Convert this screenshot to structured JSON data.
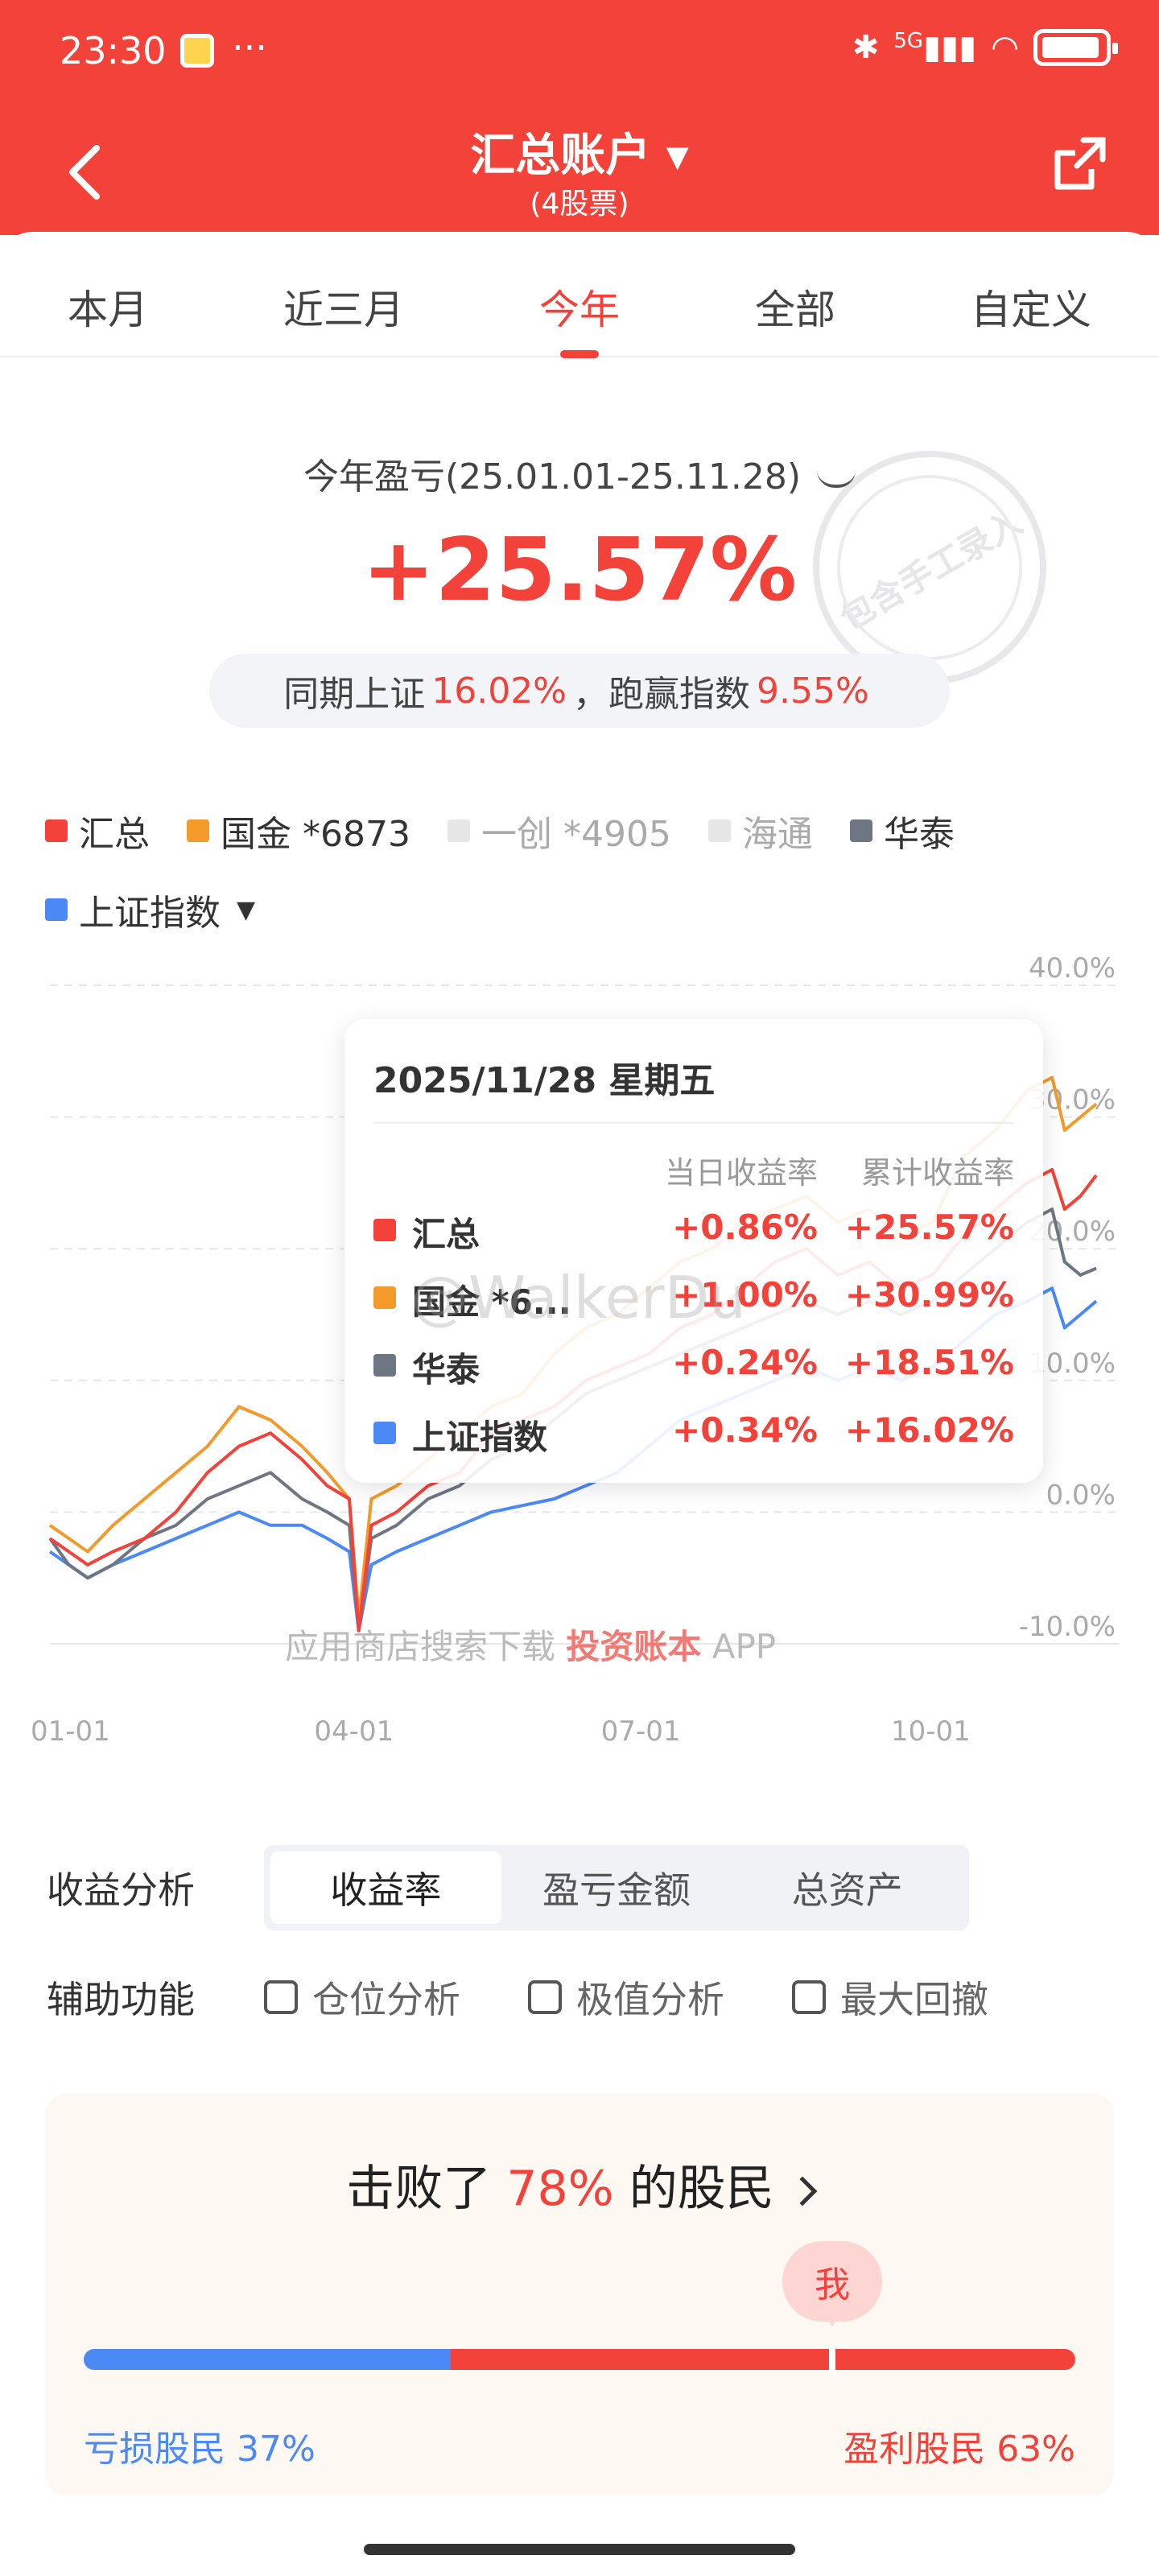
{
  "status_bar": {
    "time": "23:30",
    "dots": "···",
    "network": "5G"
  },
  "header": {
    "title": "汇总账户 ▾",
    "subtitle": "(4股票)"
  },
  "tabs": [
    {
      "label": "本月"
    },
    {
      "label": "近三月"
    },
    {
      "label": "今年",
      "active": true
    },
    {
      "label": "全部"
    },
    {
      "label": "自定义"
    }
  ],
  "summary": {
    "title": "今年盈亏(25.01.01-25.11.28)",
    "value": "+25.57%",
    "compare_prefix": "同期上证",
    "compare_index": "16.02%",
    "compare_mid": "，跑赢指数",
    "compare_diff": "9.55%",
    "stamp_text": "包含手工录入"
  },
  "legend": [
    {
      "label": "汇总",
      "color": "#f2423a"
    },
    {
      "label": "国金 *6873",
      "color": "#f39a2a"
    },
    {
      "label": "一创 *4905",
      "color": "#e6e6e6",
      "muted": true
    },
    {
      "label": "海通",
      "color": "#e6e6e6",
      "muted": true
    },
    {
      "label": "华泰",
      "color": "#6f7683"
    },
    {
      "label": "上证指数",
      "color": "#4b89f5",
      "dropdown": true
    }
  ],
  "tooltip": {
    "date": "2025/11/28 星期五",
    "col_daily": "当日收益率",
    "col_cum": "累计收益率",
    "rows": [
      {
        "name": "汇总",
        "daily": "+0.86%",
        "cum": "+25.57%",
        "color": "#f2423a"
      },
      {
        "name": "国金 *6...",
        "daily": "+1.00%",
        "cum": "+30.99%",
        "color": "#f39a2a"
      },
      {
        "name": "华泰",
        "daily": "+0.24%",
        "cum": "+18.51%",
        "color": "#6f7683"
      },
      {
        "name": "上证指数",
        "daily": "+0.34%",
        "cum": "+16.02%",
        "color": "#4b89f5"
      }
    ]
  },
  "watermark": "@WalkerDu",
  "app_watermark": {
    "prefix": "应用商店搜索下载 ",
    "app": "投资账本",
    "suffix": " APP"
  },
  "chart_data": {
    "type": "line",
    "x_ticks": [
      "01-01",
      "04-01",
      "07-01",
      "10-01"
    ],
    "y_ticks": [
      "40.0%",
      "30.0%",
      "20.0%",
      "10.0%",
      "0.0%",
      "-10.0%"
    ],
    "ylim": [
      -10,
      40
    ],
    "xlim_days": [
      0,
      332
    ],
    "grid": true,
    "series": [
      {
        "name": "汇总",
        "color": "#f2423a",
        "values": [
          [
            0,
            -2
          ],
          [
            6,
            -3
          ],
          [
            12,
            -4
          ],
          [
            20,
            -3
          ],
          [
            30,
            -2
          ],
          [
            40,
            0
          ],
          [
            50,
            3
          ],
          [
            60,
            5
          ],
          [
            70,
            6
          ],
          [
            80,
            4
          ],
          [
            88,
            2
          ],
          [
            95,
            1
          ],
          [
            98,
            -9
          ],
          [
            102,
            -1
          ],
          [
            110,
            0
          ],
          [
            120,
            2
          ],
          [
            130,
            3
          ],
          [
            140,
            6
          ],
          [
            150,
            7
          ],
          [
            160,
            8
          ],
          [
            170,
            10
          ],
          [
            180,
            11
          ],
          [
            190,
            12
          ],
          [
            200,
            14
          ],
          [
            210,
            15
          ],
          [
            220,
            17
          ],
          [
            230,
            19
          ],
          [
            240,
            20
          ],
          [
            250,
            18
          ],
          [
            260,
            19
          ],
          [
            270,
            17
          ],
          [
            280,
            18
          ],
          [
            290,
            21
          ],
          [
            300,
            23
          ],
          [
            310,
            25
          ],
          [
            318,
            26
          ],
          [
            322,
            23
          ],
          [
            327,
            24
          ],
          [
            332,
            25.57
          ]
        ]
      },
      {
        "name": "国金 *6873",
        "color": "#f39a2a",
        "values": [
          [
            0,
            -1
          ],
          [
            6,
            -2
          ],
          [
            12,
            -3
          ],
          [
            20,
            -1
          ],
          [
            30,
            1
          ],
          [
            40,
            3
          ],
          [
            50,
            5
          ],
          [
            60,
            8
          ],
          [
            70,
            7
          ],
          [
            80,
            5
          ],
          [
            88,
            3
          ],
          [
            95,
            1
          ],
          [
            98,
            -8
          ],
          [
            102,
            1
          ],
          [
            110,
            2
          ],
          [
            120,
            4
          ],
          [
            130,
            6
          ],
          [
            140,
            8
          ],
          [
            150,
            9
          ],
          [
            160,
            12
          ],
          [
            170,
            14
          ],
          [
            180,
            15
          ],
          [
            190,
            17
          ],
          [
            200,
            19
          ],
          [
            210,
            20
          ],
          [
            220,
            22
          ],
          [
            230,
            23
          ],
          [
            240,
            24
          ],
          [
            250,
            22
          ],
          [
            260,
            23
          ],
          [
            270,
            21
          ],
          [
            280,
            22
          ],
          [
            290,
            27
          ],
          [
            300,
            29
          ],
          [
            310,
            32
          ],
          [
            318,
            33
          ],
          [
            322,
            29
          ],
          [
            327,
            30
          ],
          [
            332,
            30.99
          ]
        ]
      },
      {
        "name": "华泰",
        "color": "#6f7683",
        "values": [
          [
            0,
            -2
          ],
          [
            6,
            -4
          ],
          [
            12,
            -5
          ],
          [
            20,
            -4
          ],
          [
            30,
            -2
          ],
          [
            40,
            -1
          ],
          [
            50,
            1
          ],
          [
            60,
            2
          ],
          [
            70,
            3
          ],
          [
            80,
            1
          ],
          [
            88,
            0
          ],
          [
            95,
            -1
          ],
          [
            98,
            -9
          ],
          [
            102,
            -2
          ],
          [
            110,
            -1
          ],
          [
            120,
            1
          ],
          [
            130,
            2
          ],
          [
            140,
            4
          ],
          [
            150,
            5
          ],
          [
            160,
            7
          ],
          [
            170,
            9
          ],
          [
            180,
            10
          ],
          [
            190,
            11
          ],
          [
            200,
            12
          ],
          [
            210,
            13
          ],
          [
            220,
            14
          ],
          [
            230,
            15
          ],
          [
            240,
            16
          ],
          [
            250,
            15
          ],
          [
            260,
            16
          ],
          [
            270,
            15
          ],
          [
            280,
            16
          ],
          [
            290,
            18
          ],
          [
            300,
            20
          ],
          [
            310,
            22
          ],
          [
            318,
            23
          ],
          [
            322,
            19
          ],
          [
            327,
            18
          ],
          [
            332,
            18.51
          ]
        ]
      },
      {
        "name": "上证指数",
        "color": "#4b89f5",
        "values": [
          [
            0,
            -3
          ],
          [
            6,
            -4
          ],
          [
            12,
            -5
          ],
          [
            20,
            -4
          ],
          [
            30,
            -3
          ],
          [
            40,
            -2
          ],
          [
            50,
            -1
          ],
          [
            60,
            0
          ],
          [
            70,
            -1
          ],
          [
            80,
            -1
          ],
          [
            88,
            -2
          ],
          [
            95,
            -3
          ],
          [
            98,
            -9
          ],
          [
            102,
            -4
          ],
          [
            110,
            -3
          ],
          [
            120,
            -2
          ],
          [
            130,
            -1
          ],
          [
            140,
            0
          ],
          [
            150,
            0.5
          ],
          [
            160,
            1
          ],
          [
            170,
            2
          ],
          [
            180,
            3
          ],
          [
            190,
            5
          ],
          [
            200,
            7
          ],
          [
            210,
            8
          ],
          [
            220,
            9
          ],
          [
            230,
            10
          ],
          [
            240,
            11
          ],
          [
            250,
            10
          ],
          [
            260,
            11
          ],
          [
            270,
            10
          ],
          [
            280,
            11
          ],
          [
            290,
            13
          ],
          [
            300,
            15
          ],
          [
            310,
            16
          ],
          [
            318,
            17
          ],
          [
            322,
            14
          ],
          [
            327,
            15
          ],
          [
            332,
            16.02
          ]
        ]
      }
    ]
  },
  "analysis": {
    "label": "收益分析",
    "options": [
      {
        "label": "收益率",
        "active": true
      },
      {
        "label": "盈亏金额"
      },
      {
        "label": "总资产"
      }
    ]
  },
  "aux": {
    "label": "辅助功能",
    "options": [
      {
        "label": "仓位分析"
      },
      {
        "label": "极值分析"
      },
      {
        "label": "最大回撤"
      }
    ]
  },
  "beat": {
    "title_prefix": "击败了 ",
    "percent": "78%",
    "title_suffix": " 的股民",
    "me_label": "我",
    "loss_label": "亏损股民 37%",
    "profit_label": "盈利股民 63%",
    "loss_share": 0.37,
    "me_position": 0.755
  }
}
